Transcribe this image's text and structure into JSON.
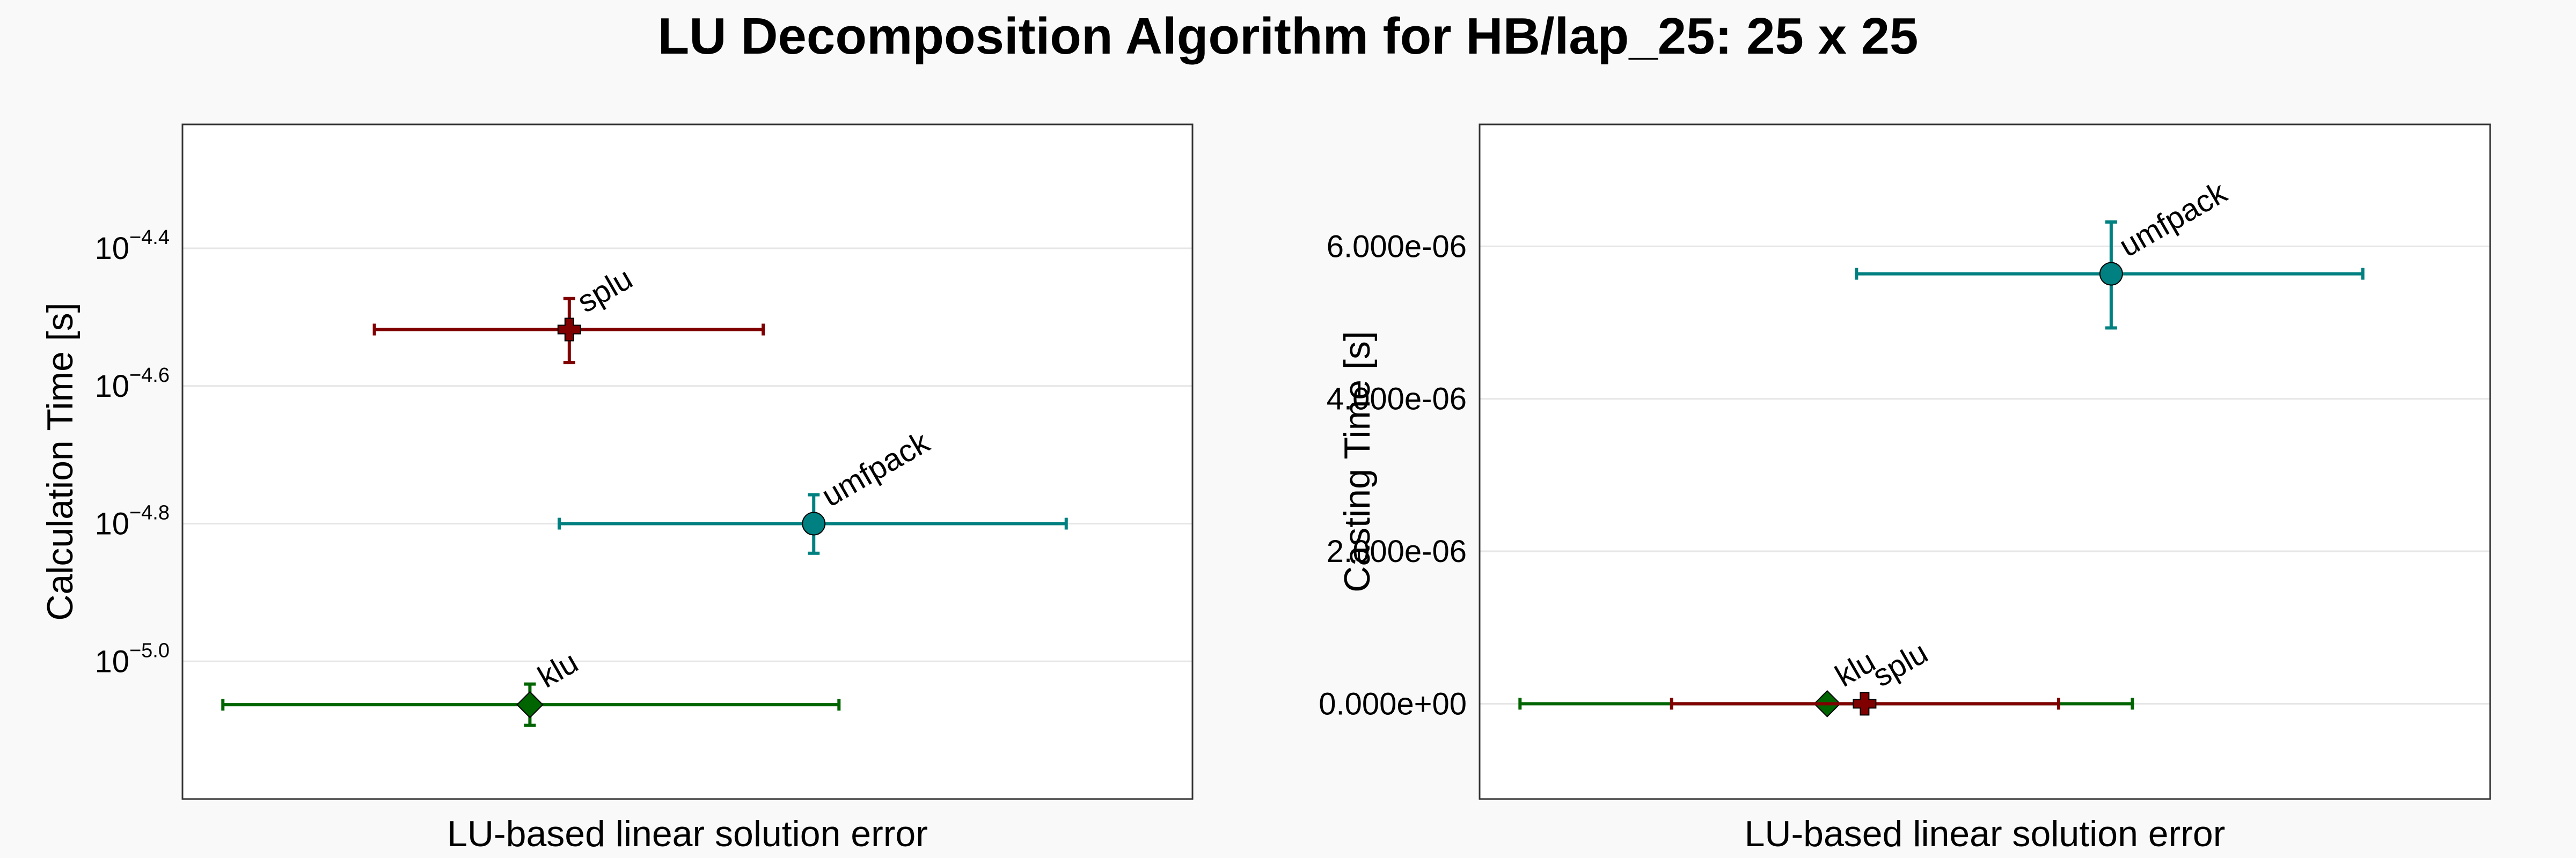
{
  "figure": {
    "title": "LU Decomposition Algorithm for HB/lap_25: 25 x 25"
  },
  "colors": {
    "background": "#f9f9f9",
    "plot_background": "#ffffff",
    "grid": "#e6e6e6",
    "axis": "#333333",
    "splu": "#800000",
    "umfpack": "#008080",
    "klu": "#006400"
  },
  "chart_data": [
    {
      "type": "scatter",
      "subtype": "error-bar",
      "title": "",
      "xlabel": "LU-based linear solution error",
      "ylabel": "Calculation Time [s]",
      "y_scale": "log10",
      "y_log_range": [
        -5.2,
        -4.22
      ],
      "x_range": [
        0,
        1
      ],
      "x_ticks_shown": false,
      "y_ticks": [
        {
          "exp": -4.4,
          "base": "10",
          "sup": "−4.4"
        },
        {
          "exp": -4.6,
          "base": "10",
          "sup": "−4.6"
        },
        {
          "exp": -4.8,
          "base": "10",
          "sup": "−4.8"
        },
        {
          "exp": -5.0,
          "base": "10",
          "sup": "−5.0"
        }
      ],
      "grid": true,
      "legend": "none",
      "series": [
        {
          "name": "splu",
          "marker": "cross",
          "color_key": "splu",
          "x": 0.383,
          "x_err": [
            0.19,
            0.575
          ],
          "y_log": -4.518,
          "y_log_err": [
            -4.566,
            -4.473
          ]
        },
        {
          "name": "umfpack",
          "marker": "circle",
          "color_key": "umfpack",
          "x": 0.625,
          "x_err": [
            0.373,
            0.875
          ],
          "y_log": -4.8,
          "y_log_err": [
            -4.843,
            -4.758
          ]
        },
        {
          "name": "klu",
          "marker": "diamond",
          "color_key": "klu",
          "x": 0.344,
          "x_err": [
            0.04,
            0.65
          ],
          "y_log": -5.063,
          "y_log_err": [
            -5.093,
            -5.033
          ]
        }
      ]
    },
    {
      "type": "scatter",
      "subtype": "error-bar",
      "title": "",
      "xlabel": "LU-based linear solution error",
      "ylabel": "Casting Time [s]",
      "y_scale": "linear",
      "ylim": [
        -1.25e-06,
        7.6e-06
      ],
      "x_range": [
        0,
        1
      ],
      "x_ticks_shown": false,
      "y_ticks": [
        {
          "value": 0,
          "label": "0.000e+00"
        },
        {
          "value": 2e-06,
          "label": "2.000e-06"
        },
        {
          "value": 4e-06,
          "label": "4.000e-06"
        },
        {
          "value": 6e-06,
          "label": "6.000e-06"
        }
      ],
      "grid": true,
      "legend": "none",
      "series": [
        {
          "name": "umfpack",
          "marker": "circle",
          "color_key": "umfpack",
          "x": 0.625,
          "x_err": [
            0.373,
            0.874
          ],
          "y": 5.64e-06,
          "y_err": [
            4.93e-06,
            6.32e-06
          ]
        },
        {
          "name": "klu",
          "marker": "diamond",
          "color_key": "klu",
          "x": 0.344,
          "x_err": [
            0.04,
            0.646
          ],
          "y": 0.0,
          "y_err": [
            0.0,
            0.0
          ]
        },
        {
          "name": "splu",
          "marker": "cross",
          "color_key": "splu",
          "x": 0.381,
          "x_err": [
            0.19,
            0.573
          ],
          "y": 0.0,
          "y_err": [
            0.0,
            0.0
          ]
        }
      ]
    }
  ]
}
